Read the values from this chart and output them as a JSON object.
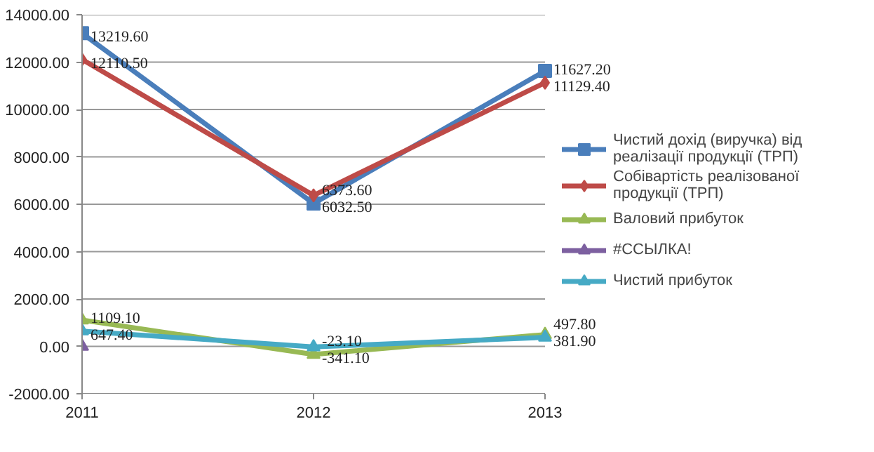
{
  "chart_data": {
    "type": "line",
    "categories": [
      "2011",
      "2012",
      "2013"
    ],
    "ylim": [
      -2000,
      14000
    ],
    "yticks": [
      {
        "value": -2000,
        "label": "-2000.00"
      },
      {
        "value": 0,
        "label": "0.00"
      },
      {
        "value": 2000,
        "label": "2000.00"
      },
      {
        "value": 4000,
        "label": "4000.00"
      },
      {
        "value": 6000,
        "label": "6000.00"
      },
      {
        "value": 8000,
        "label": "8000.00"
      },
      {
        "value": 10000,
        "label": "10000.00"
      },
      {
        "value": 12000,
        "label": "12000.00"
      },
      {
        "value": 14000,
        "label": "14000.00"
      }
    ],
    "grid": "y",
    "legend": "right",
    "series": [
      {
        "name": "Чистий дохід (виручка) від реалізації продукції (ТРП)",
        "color": "#4a7ebb",
        "marker": "square",
        "values": [
          13219.6,
          6032.5,
          11627.2
        ],
        "value_labels": [
          "13219.60",
          "6032.50",
          "11627.20"
        ]
      },
      {
        "name": "Собівартість реалізованої продукції (ТРП)",
        "color": "#be4b48",
        "marker": "diamond",
        "values": [
          12110.5,
          6373.6,
          11129.4
        ],
        "value_labels": [
          "12110.50",
          "6373.60",
          "11129.40"
        ]
      },
      {
        "name": "Валовий прибуток",
        "color": "#98b954",
        "marker": "triangle",
        "values": [
          1109.1,
          -341.1,
          497.8
        ],
        "value_labels": [
          "1109.10",
          "-341.10",
          "497.80"
        ]
      },
      {
        "name": "#ССЫЛКА!",
        "color": "#7d60a0",
        "marker": "triangle",
        "values": [
          0,
          null,
          null
        ],
        "value_labels": [
          null,
          null,
          null
        ]
      },
      {
        "name": "Чистий прибуток",
        "color": "#46aac5",
        "marker": "triangle",
        "values": [
          647.4,
          -23.1,
          381.9
        ],
        "value_labels": [
          "647.40",
          "-23.10",
          "381.90"
        ]
      }
    ]
  }
}
